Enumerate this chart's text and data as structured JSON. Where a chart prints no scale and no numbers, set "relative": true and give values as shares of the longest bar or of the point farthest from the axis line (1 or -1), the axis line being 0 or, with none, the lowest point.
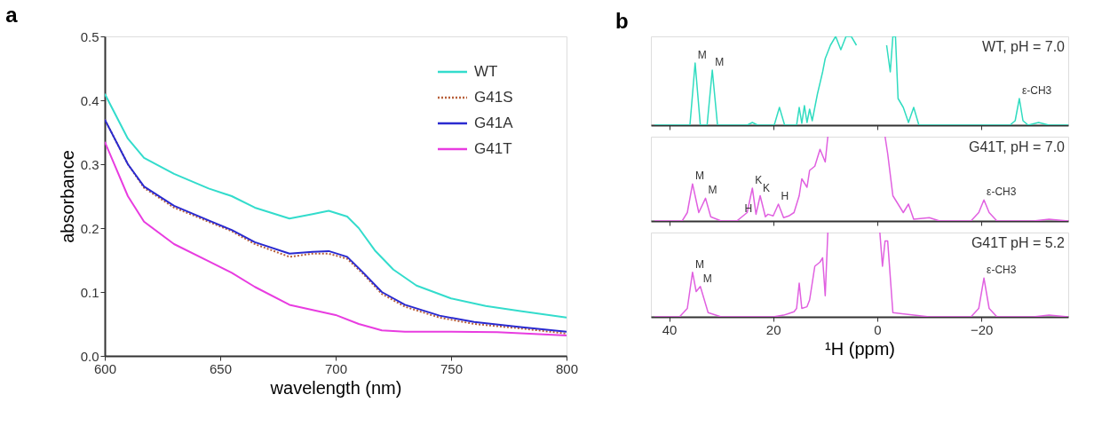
{
  "chart_data": [
    {
      "type": "line",
      "title": "a",
      "xlabel": "wavelength (nm)",
      "ylabel": "absorbance",
      "xlim": [
        600,
        800
      ],
      "xticks": [
        600,
        650,
        700,
        750,
        800
      ],
      "ylim": [
        0,
        0.5
      ],
      "yticks": [
        {
          "value": 0,
          "label": "0.0"
        },
        0.1,
        0.2,
        0.3,
        0.4,
        0.5
      ],
      "legend": "top right",
      "grid": false,
      "marker": "none",
      "series": [
        {
          "name": "WT",
          "color": "#33dccc",
          "line_style": "solid",
          "x": [
            600,
            610,
            617,
            630,
            645,
            655,
            665,
            680,
            690,
            697,
            705,
            710,
            717,
            725,
            735,
            750,
            765,
            780,
            800
          ],
          "values": [
            0.41,
            0.34,
            0.31,
            0.285,
            0.262,
            0.25,
            0.232,
            0.215,
            0.222,
            0.227,
            0.218,
            0.2,
            0.165,
            0.135,
            0.11,
            0.09,
            0.078,
            0.07,
            0.06
          ]
        },
        {
          "name": "G41S",
          "color": "#b8603a",
          "line_style": "dotted",
          "x": [
            600,
            610,
            617,
            630,
            645,
            655,
            665,
            680,
            690,
            697,
            705,
            712,
            720,
            730,
            745,
            760,
            780,
            800
          ],
          "values": [
            0.37,
            0.3,
            0.263,
            0.232,
            0.21,
            0.195,
            0.175,
            0.155,
            0.16,
            0.16,
            0.152,
            0.128,
            0.097,
            0.077,
            0.06,
            0.05,
            0.043,
            0.035
          ]
        },
        {
          "name": "G41A",
          "color": "#2a2ad0",
          "line_style": "solid",
          "x": [
            600,
            610,
            617,
            630,
            645,
            655,
            665,
            680,
            690,
            697,
            705,
            712,
            720,
            730,
            745,
            760,
            780,
            800
          ],
          "values": [
            0.37,
            0.3,
            0.265,
            0.235,
            0.212,
            0.197,
            0.178,
            0.16,
            0.163,
            0.164,
            0.155,
            0.13,
            0.1,
            0.08,
            0.063,
            0.053,
            0.045,
            0.038
          ]
        },
        {
          "name": "G41T",
          "color": "#e83ce0",
          "line_style": "solid",
          "x": [
            600,
            610,
            617,
            630,
            645,
            655,
            665,
            680,
            690,
            700,
            710,
            720,
            730,
            750,
            770,
            800
          ],
          "values": [
            0.335,
            0.25,
            0.21,
            0.175,
            0.148,
            0.13,
            0.108,
            0.08,
            0.072,
            0.064,
            0.05,
            0.04,
            0.038,
            0.038,
            0.037,
            0.032
          ]
        }
      ]
    },
    {
      "type": "line",
      "title": "b",
      "relative": true,
      "xlim": [
        43.5,
        -36.7
      ],
      "xticks": [
        40,
        20,
        0,
        -20
      ],
      "tick_labels": false,
      "legend": false,
      "marker": "none",
      "annotations": [
        {
          "text": "M",
          "x": 35,
          "y": 0.7
        },
        {
          "text": "M",
          "x": 31.7,
          "y": 0.62
        },
        {
          "text": "ε-CH3",
          "x": -27.3,
          "y": 0.3
        }
      ],
      "series": [
        {
          "name": "WT, pH = 7.0",
          "color": "#30dcc0",
          "x": [
            42.8,
            36,
            35,
            34,
            32.7,
            31.7,
            30.7,
            25,
            24,
            23,
            19.8,
            18.8,
            17.8,
            15.5,
            15,
            14.5,
            14,
            13.5,
            13,
            12.5,
            12,
            11.5,
            10.5,
            10,
            9,
            8,
            7,
            6,
            5,
            4,
            3.2,
            -1.8,
            -2.5,
            -3,
            -3.5,
            -4,
            -5,
            -6,
            -7,
            -8,
            -25.5,
            -26.5,
            -27.3,
            -28,
            -29,
            -31,
            -33,
            -36.7
          ],
          "values": [
            0,
            0,
            0.7,
            0,
            0,
            0.62,
            0,
            0,
            0.03,
            0,
            0,
            0.2,
            0,
            0,
            0.2,
            0.02,
            0.22,
            0.03,
            0.18,
            0.05,
            0.2,
            0.35,
            0.6,
            0.75,
            0.9,
            1,
            0.85,
            1,
            1,
            0.9,
            null,
            0.9,
            0.6,
            1,
            1,
            0.3,
            0.2,
            0.03,
            0.2,
            0,
            0,
            0.05,
            0.3,
            0.05,
            0,
            0.03,
            0,
            0
          ]
        }
      ]
    },
    {
      "type": "line",
      "relative": true,
      "xlim": [
        43.5,
        -36.7
      ],
      "xticks": [
        40,
        20,
        0,
        -20
      ],
      "tick_labels": false,
      "legend": false,
      "marker": "none",
      "annotations": [
        {
          "text": "M",
          "x": 35.5,
          "y": 0.44
        },
        {
          "text": "M",
          "x": 33,
          "y": 0.27
        },
        {
          "text": "H",
          "x": 26,
          "y": 0.05
        },
        {
          "text": "K",
          "x": 24,
          "y": 0.39
        },
        {
          "text": "K",
          "x": 22.5,
          "y": 0.3
        },
        {
          "text": "H",
          "x": 19,
          "y": 0.2
        },
        {
          "text": "ε-CH3",
          "x": -20.5,
          "y": 0.25
        }
      ],
      "series": [
        {
          "name": "G41T, pH = 7.0",
          "color": "#e060e0",
          "x": [
            42.8,
            37.5,
            36.5,
            35.5,
            34.3,
            33,
            32,
            30,
            27,
            26,
            25,
            24,
            23.3,
            22.5,
            21.5,
            21,
            20,
            19,
            18,
            17,
            16,
            15,
            14.5,
            13.5,
            13,
            12,
            11,
            10,
            9.5,
            8.5,
            -1.5,
            -2,
            -3,
            -4,
            -5,
            -6,
            -7,
            -10,
            -12,
            -18,
            -19.5,
            -20.5,
            -21.5,
            -23,
            -30,
            -33,
            -36.7
          ],
          "values": [
            0,
            0,
            0.1,
            0.44,
            0.1,
            0.27,
            0.05,
            0,
            0,
            0.05,
            0.1,
            0.39,
            0.08,
            0.3,
            0.05,
            0.08,
            0.06,
            0.2,
            0.04,
            0.06,
            0.1,
            0.3,
            0.5,
            0.4,
            0.6,
            0.65,
            0.85,
            0.7,
            1,
            null,
            1,
            0.8,
            0.3,
            0.2,
            0.1,
            0.2,
            0.02,
            0.04,
            0,
            0,
            0.1,
            0.25,
            0.1,
            0,
            0,
            0.02,
            0
          ]
        }
      ]
    },
    {
      "type": "line",
      "relative": true,
      "xlim": [
        43.5,
        -36.7
      ],
      "xticks": [
        40,
        20,
        0,
        -20
      ],
      "tick_labels": "x",
      "xlabel": "¹H (ppm)",
      "legend": false,
      "marker": "none",
      "annotations": [
        {
          "text": "M",
          "x": 35.5,
          "y": 0.53
        },
        {
          "text": "M",
          "x": 34,
          "y": 0.36
        },
        {
          "text": "ε-CH3",
          "x": -20.5,
          "y": 0.46
        }
      ],
      "series": [
        {
          "name": "G41T pH = 5.2",
          "color": "#e060e0",
          "x": [
            42.8,
            38,
            36.5,
            35.5,
            34.8,
            34,
            32.5,
            30,
            20,
            18,
            17,
            16,
            15.5,
            15,
            14.5,
            13.5,
            13,
            12,
            11,
            10.5,
            10,
            9.5,
            8.5,
            -0.5,
            -1,
            -1.5,
            -2,
            -3,
            -10,
            -18,
            -19.5,
            -20.5,
            -21.5,
            -23,
            -30,
            -33,
            -36.7
          ],
          "values": [
            0,
            0,
            0.1,
            0.53,
            0.3,
            0.36,
            0.05,
            0,
            0,
            0.02,
            0.04,
            0.06,
            0.1,
            0.4,
            0.1,
            0.12,
            0.2,
            0.6,
            0.65,
            0.7,
            0.25,
            1,
            null,
            1,
            0.6,
            0.9,
            0.9,
            0.05,
            0,
            0,
            0.1,
            0.46,
            0.1,
            0,
            0,
            0.02,
            0
          ]
        }
      ]
    }
  ]
}
